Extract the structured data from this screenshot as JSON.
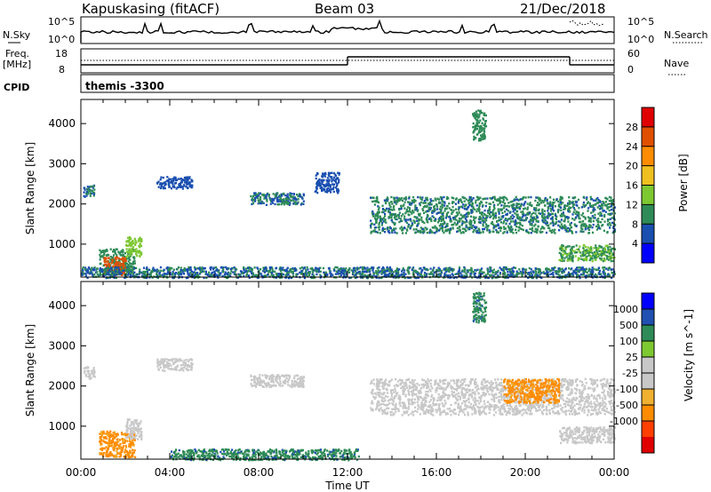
{
  "header": {
    "station": "Kapuskasing (fitACF)",
    "beam": "Beam 03",
    "date": "21/Dec/2018"
  },
  "noise_panel": {
    "left_label": "N.Sky",
    "left_ticks": [
      "10^5",
      "10^0"
    ],
    "right_label": "N.Search",
    "right_ticks": [
      "10^5",
      "10^0"
    ]
  },
  "freq_panel": {
    "left_label_line1": "Freq.",
    "left_label_line2": "[MHz]",
    "left_ticks": [
      "18",
      "8"
    ],
    "right_label": "Nave",
    "right_ticks": [
      "60",
      "0"
    ]
  },
  "cpid_panel": {
    "label": "CPID",
    "value": "themis -3300"
  },
  "x_axis": {
    "label": "Time UT",
    "ticks": [
      "00:00",
      "04:00",
      "08:00",
      "12:00",
      "16:00",
      "20:00",
      "00:00"
    ]
  },
  "colors": {
    "power_scale": [
      "#0000ff",
      "#1a4fb0",
      "#2e8b57",
      "#7ec832",
      "#f0c020",
      "#ff8c00",
      "#e05000",
      "#e00000"
    ],
    "velocity_scale": [
      "#e00000",
      "#ff4000",
      "#ff8c00",
      "#f0b030",
      "#c8c8c8",
      "#c8c8c8",
      "#7ec832",
      "#2e8b57",
      "#2050b0",
      "#0000ff"
    ],
    "ground_scatter": "#c8c8c8"
  },
  "chart_data": [
    {
      "type": "heatmap",
      "title": "Power",
      "xlabel": "Time UT",
      "ylabel": "Slant Range [km]",
      "xlim_hours": [
        0,
        24
      ],
      "ylim_km": [
        180,
        4600
      ],
      "yticks": [
        "1000",
        "2000",
        "3000",
        "4000"
      ],
      "colorbar_label": "Power [dB]",
      "colorbar_ticks": [
        "4",
        "8",
        "12",
        "16",
        "20",
        "24",
        "28"
      ],
      "colorbar_range": [
        0,
        32
      ],
      "regions": [
        {
          "t0": 0.1,
          "t1": 0.6,
          "r0": 2200,
          "r1": 2500,
          "value": 8
        },
        {
          "t0": 0.8,
          "t1": 2.4,
          "r0": 250,
          "r1": 900,
          "value": 10
        },
        {
          "t0": 1.0,
          "t1": 2.0,
          "r0": 250,
          "r1": 700,
          "value": 26
        },
        {
          "t0": 2.0,
          "t1": 2.7,
          "r0": 700,
          "r1": 1200,
          "value": 14
        },
        {
          "t0": 3.4,
          "t1": 5.0,
          "r0": 2400,
          "r1": 2700,
          "value": 6
        },
        {
          "t0": 7.6,
          "t1": 10.0,
          "r0": 2000,
          "r1": 2300,
          "value": 8
        },
        {
          "t0": 10.5,
          "t1": 11.6,
          "r0": 2300,
          "r1": 2800,
          "value": 6
        },
        {
          "t0": 13.0,
          "t1": 24.0,
          "r0": 1300,
          "r1": 2200,
          "value": 9
        },
        {
          "t0": 17.6,
          "t1": 18.2,
          "r0": 3600,
          "r1": 4350,
          "value": 10
        },
        {
          "t0": 21.5,
          "t1": 24.0,
          "r0": 600,
          "r1": 1000,
          "value": 12
        },
        {
          "t0": 0.0,
          "t1": 24.0,
          "r0": 180,
          "r1": 450,
          "value": 8
        }
      ]
    },
    {
      "type": "heatmap",
      "title": "Velocity",
      "xlabel": "Time UT",
      "ylabel": "Slant Range [km]",
      "xlim_hours": [
        0,
        24
      ],
      "ylim_km": [
        180,
        4600
      ],
      "yticks": [
        "1000",
        "2000",
        "3000",
        "4000"
      ],
      "colorbar_label": "Velocity [m s^-1]",
      "colorbar_ticks": [
        "1000",
        "500",
        "100",
        "25",
        "-25",
        "-100",
        "-500",
        "-1000"
      ],
      "regions": [
        {
          "t0": 0.1,
          "t1": 0.6,
          "r0": 2200,
          "r1": 2500,
          "value": 0
        },
        {
          "t0": 0.8,
          "t1": 2.4,
          "r0": 250,
          "r1": 900,
          "value": -150
        },
        {
          "t0": 2.0,
          "t1": 2.7,
          "r0": 700,
          "r1": 1200,
          "value": 0
        },
        {
          "t0": 3.4,
          "t1": 5.0,
          "r0": 2400,
          "r1": 2700,
          "value": 0
        },
        {
          "t0": 7.6,
          "t1": 10.0,
          "r0": 2000,
          "r1": 2300,
          "value": 0
        },
        {
          "t0": 13.0,
          "t1": 24.0,
          "r0": 1300,
          "r1": 2200,
          "value": 0
        },
        {
          "t0": 19.0,
          "t1": 21.5,
          "r0": 1600,
          "r1": 2200,
          "value": -120
        },
        {
          "t0": 17.6,
          "t1": 18.2,
          "r0": 3600,
          "r1": 4350,
          "value": 300
        },
        {
          "t0": 21.5,
          "t1": 24.0,
          "r0": 600,
          "r1": 1000,
          "value": 0
        },
        {
          "t0": 4.0,
          "t1": 12.5,
          "r0": 180,
          "r1": 450,
          "value": 150
        }
      ]
    }
  ]
}
